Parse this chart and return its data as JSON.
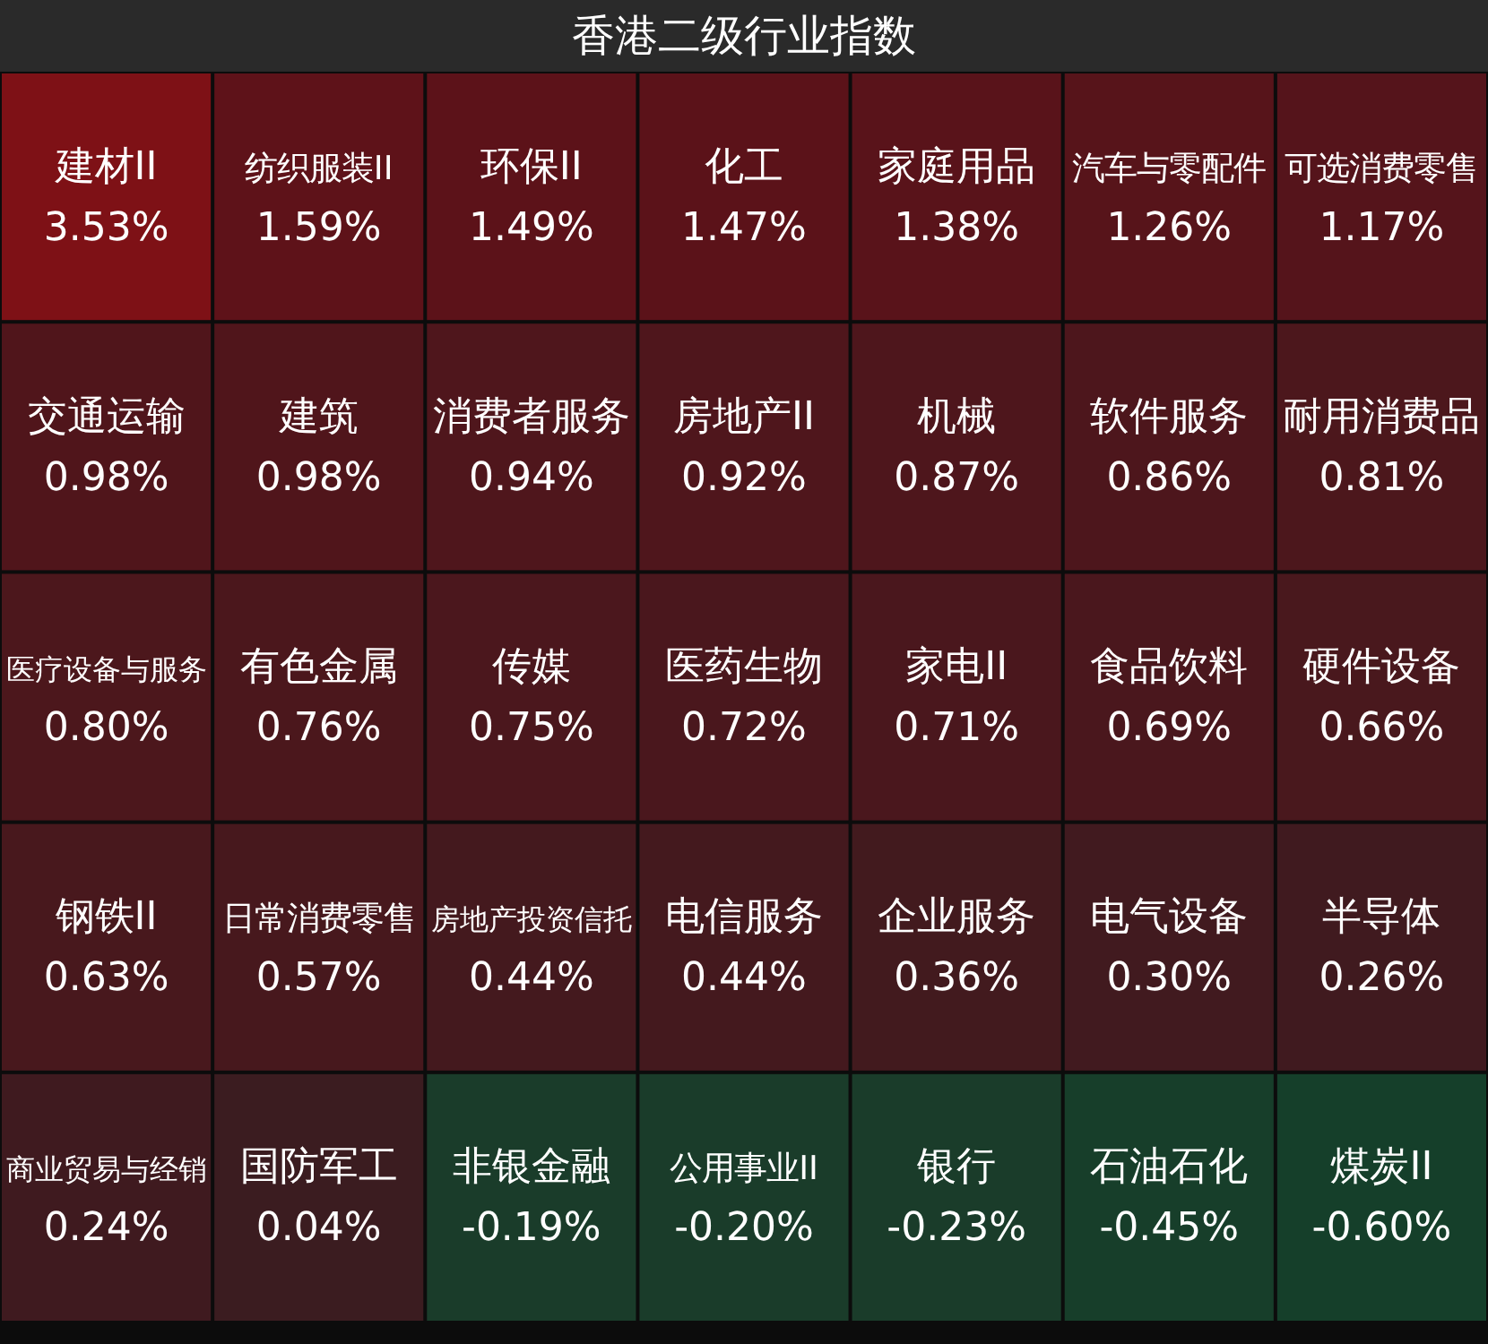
{
  "chart_data": {
    "type": "other",
    "title": "香港二级行业指数",
    "categories": [
      "建材II",
      "纺织服装II",
      "环保II",
      "化工",
      "家庭用品",
      "汽车与零配件",
      "可选消费零售",
      "交通运输",
      "建筑",
      "消费者服务",
      "房地产II",
      "机械",
      "软件服务",
      "耐用消费品",
      "医疗设备与服务",
      "有色金属",
      "传媒",
      "医药生物",
      "家电II",
      "食品饮料",
      "硬件设备",
      "钢铁II",
      "日常消费零售",
      "房地产投资信托",
      "电信服务",
      "企业服务",
      "电气设备",
      "半导体",
      "商业贸易与经销",
      "国防军工",
      "非银金融",
      "公用事业II",
      "银行",
      "石油石化",
      "煤炭II"
    ],
    "values": [
      3.53,
      1.59,
      1.49,
      1.47,
      1.38,
      1.26,
      1.17,
      0.98,
      0.98,
      0.94,
      0.92,
      0.87,
      0.86,
      0.81,
      0.8,
      0.76,
      0.75,
      0.72,
      0.71,
      0.69,
      0.66,
      0.63,
      0.57,
      0.44,
      0.44,
      0.36,
      0.3,
      0.26,
      0.24,
      0.04,
      -0.19,
      -0.2,
      -0.23,
      -0.45,
      -0.6
    ],
    "value_labels": [
      "3.53%",
      "1.59%",
      "1.49%",
      "1.47%",
      "1.38%",
      "1.26%",
      "1.17%",
      "0.98%",
      "0.98%",
      "0.94%",
      "0.92%",
      "0.87%",
      "0.86%",
      "0.81%",
      "0.80%",
      "0.76%",
      "0.75%",
      "0.72%",
      "0.71%",
      "0.69%",
      "0.66%",
      "0.63%",
      "0.57%",
      "0.44%",
      "0.44%",
      "0.36%",
      "0.30%",
      "0.26%",
      "0.24%",
      "0.04%",
      "-0.19%",
      "-0.20%",
      "-0.23%",
      "-0.45%",
      "-0.60%"
    ]
  }
}
